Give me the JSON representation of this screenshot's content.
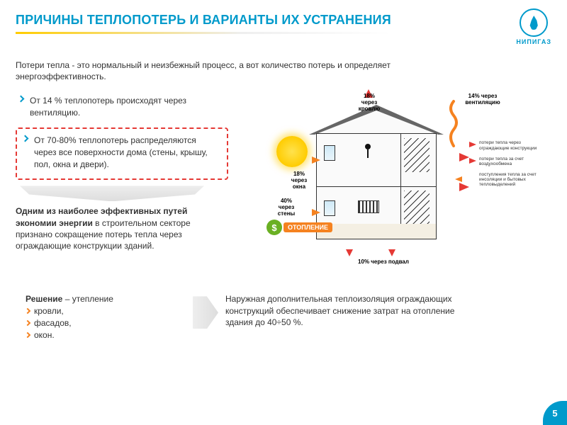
{
  "title": "ПРИЧИНЫ ТЕПЛОПОТЕРЬ И ВАРИАНТЫ ИХ УСТРАНЕНИЯ",
  "logo": {
    "text": "НИПИГАЗ",
    "color": "#009acb"
  },
  "intro": "Потери тепла - это нормальный и неизбежный процесс, а вот количество потерь и определяет энергоэффективность.",
  "bullets": {
    "vent": "От 14 % теплопотерь происходят через вентиляцию.",
    "envelope": "От 70-80% теплопотерь распределяются через все поверхности дома (стены, крышу, пол, окна и двери)."
  },
  "effective": {
    "bold": "Одним из наиболее эффективных путей экономии энергии",
    "rest": " в строительном секторе признано сокращение потерь тепла через ограждающие конструкции зданий."
  },
  "solution": {
    "lead": "Решение",
    "tail": " – утепление",
    "items": [
      "кровли,",
      "фасадов,",
      "окон."
    ]
  },
  "conclusion": "Наружная дополнительная теплоизоляция ограждающих конструкций обеспечивает снижение затрат на отопление здания до 40÷50 %.",
  "page_number": "5",
  "diagram": {
    "labels": {
      "roof": {
        "pct": 18,
        "text": "18%\nчерез\nкровлю"
      },
      "vent": {
        "pct": 14,
        "text": "14% через\nвентиляцию"
      },
      "windows": {
        "pct": 18,
        "text": "18%\nчерез\nокна"
      },
      "walls": {
        "pct": 40,
        "text": "40%\nчерез\nстены"
      },
      "basement": {
        "pct": 10,
        "text": "10% через подвал"
      }
    },
    "heating_badge": "ОТОПЛЕНИЕ",
    "legend": [
      {
        "color": "#e53935",
        "text": "потери тепла через ограждающие конструкции"
      },
      {
        "color": "#e53935",
        "text": "потери тепла за счет воздухообмена"
      },
      {
        "color": "#f58220",
        "text": "поступления тепла за счет инсоляции и бытовых тепловыделений"
      }
    ],
    "colors": {
      "arrow_red": "#e53935",
      "arrow_orange": "#f58220",
      "sun": "#ffcc00",
      "house_line": "#333333",
      "green": "#6ab023"
    }
  },
  "style": {
    "accent": "#009acb",
    "underline_yellow": "#ffcc00",
    "dashed_red": "#e53935",
    "orange": "#f58220",
    "big_arrow_fill": "#dddddd"
  }
}
